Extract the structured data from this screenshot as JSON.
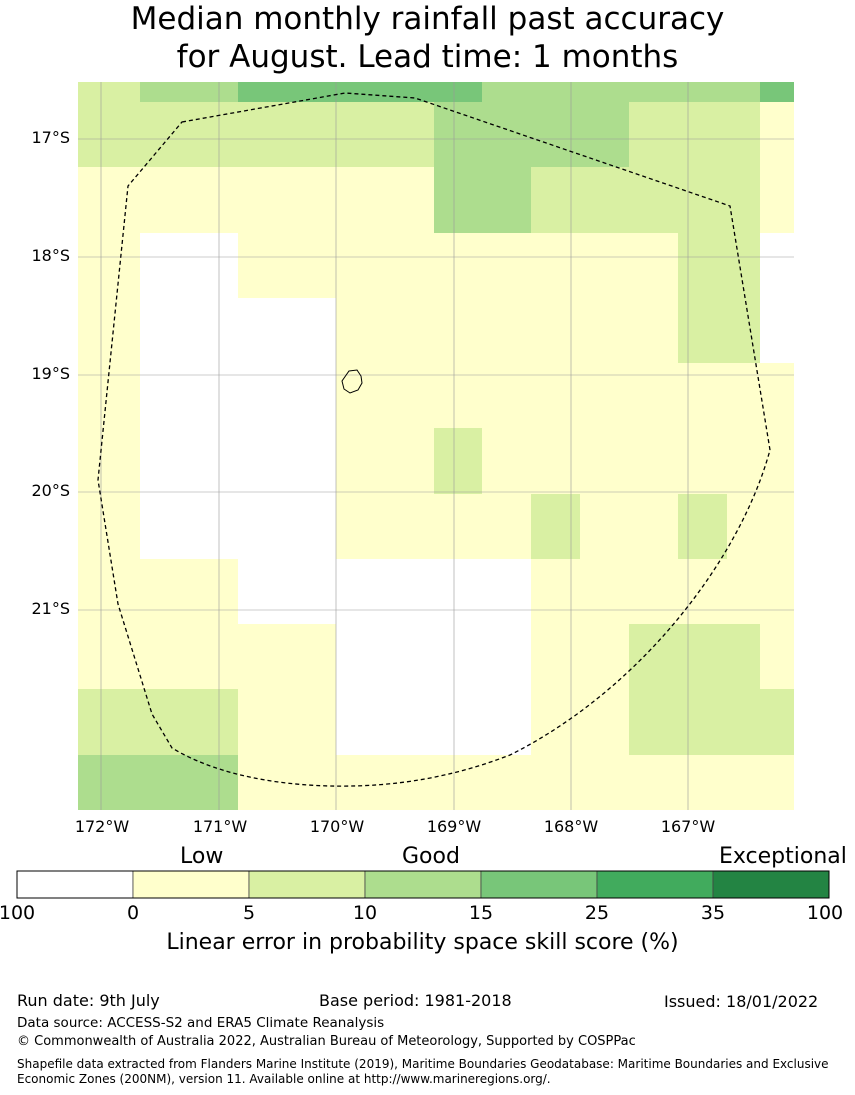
{
  "title_line1": "Median monthly rainfall past accuracy",
  "title_line2": "for August. Lead time: 1 months",
  "lat_labels": [
    "17°S",
    "18°S",
    "19°S",
    "20°S",
    "21°S"
  ],
  "lon_labels": [
    "172°W",
    "171°W",
    "170°W",
    "169°W",
    "168°W",
    "167°W"
  ],
  "legend": {
    "categories": [
      "Low",
      "Good",
      "Exceptional"
    ],
    "ticks": [
      "100",
      "0",
      "5",
      "10",
      "15",
      "25",
      "35",
      "100"
    ],
    "colors": [
      "#ffffff",
      "#ffffcc",
      "#d9f0a3",
      "#addd8e",
      "#78c679",
      "#41ab5d",
      "#238443"
    ],
    "label": "Linear error in probability space skill score (%)"
  },
  "grid_colors": {
    "W": "#ffffff",
    "Y": "#ffffcc",
    "L": "#d9f0a3",
    "M": "#addd8e",
    "G": "#78c679"
  },
  "grid_rows": [
    "LMGGGMMMMMMG",
    "LLLLMMMMLLLY",
    "YYYYMMLLLLLY",
    "YWYYYYYYYLLW",
    "YWWYYYYYYLLW",
    "YWWYYYYYYYYY",
    "YWWYLYYYYYYY",
    "YWWYYYLYYLYY",
    "YYWWWWYYYYYY",
    "YYYWWWYYLLLY",
    "LLYWWWYYLLLL",
    "MMYYYYYYYYYY"
  ],
  "run_date": "Run date: 9th July",
  "base_period": "Base period: 1981-2018",
  "issued": "Issued: 18/01/2022",
  "data_source": "Data source: ACCESS-S2 and ERA5 Climate Reanalysis",
  "copyright": "© Commonwealth of Australia 2022, Australian Bureau of Meteorology, Supported by COSPPac",
  "shapefile_line1": "Shapefile data extracted from Flanders Marine Institute (2019), Maritime Boundaries Geodatabase: Maritime Boundaries and Exclusive",
  "shapefile_line2": "Economic Zones (200NM), version 11. Available online at http://www.marineregions.org/."
}
